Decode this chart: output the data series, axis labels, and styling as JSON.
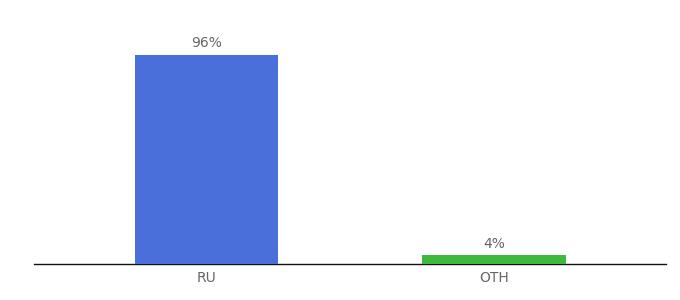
{
  "categories": [
    "RU",
    "OTH"
  ],
  "values": [
    96,
    4
  ],
  "bar_colors": [
    "#4a6fdb",
    "#3dba3d"
  ],
  "label_texts": [
    "96%",
    "4%"
  ],
  "ylim": [
    0,
    110
  ],
  "background_color": "#ffffff",
  "bar_width": 0.5,
  "label_fontsize": 10,
  "tick_fontsize": 10,
  "tick_color": "#666666",
  "label_color": "#666666",
  "axis_line_color": "#111111"
}
